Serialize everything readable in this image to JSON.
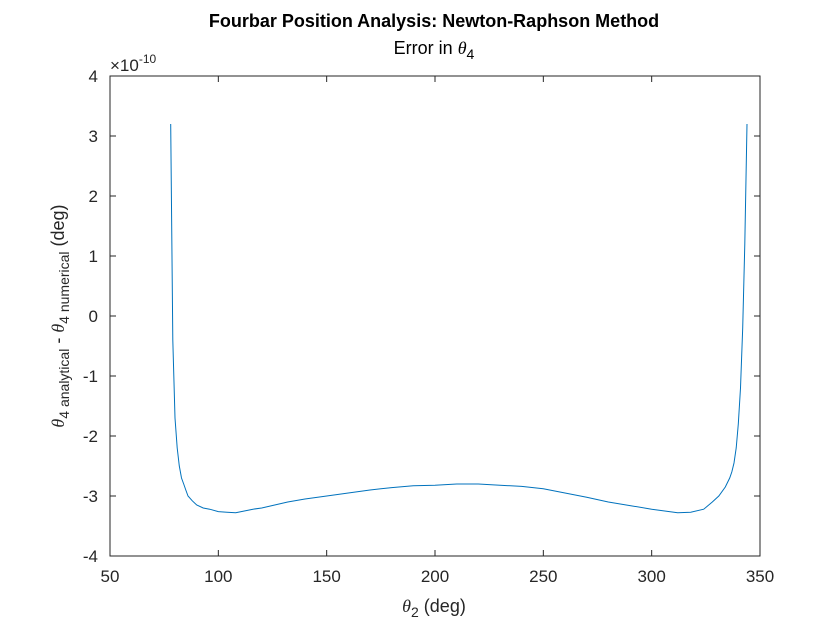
{
  "chart_data": {
    "type": "line",
    "title": "Fourbar Position Analysis: Newton-Raphson Method",
    "subtitle": {
      "prefix": "Error in ",
      "symbol": "θ",
      "sub": "4"
    },
    "xlabel": {
      "symbol": "θ",
      "sub": "2",
      "suffix": " (deg)"
    },
    "ylabel": {
      "symbol": "θ",
      "sub1": "4 analytical",
      "mid": " - ",
      "symbol2": "θ",
      "sub2": "4 numerical",
      "suffix": " (deg)"
    },
    "y_multiplier": {
      "base": "×10",
      "exp": "-10"
    },
    "xlim": [
      50,
      350
    ],
    "ylim": [
      -4,
      4
    ],
    "xticks": [
      50,
      100,
      150,
      200,
      250,
      300,
      350
    ],
    "yticks": [
      -4,
      -3,
      -2,
      -1,
      0,
      1,
      2,
      3,
      4
    ],
    "grid": false,
    "line_color": "#0072BD",
    "series": [
      {
        "x": [
          78,
          79,
          80,
          81,
          82,
          83,
          84,
          85,
          86,
          88,
          90,
          93,
          96,
          100,
          104,
          108,
          112,
          116,
          120,
          126,
          132,
          140,
          150,
          160,
          170,
          180,
          190,
          200,
          210,
          220,
          230,
          240,
          250,
          260,
          270,
          280,
          290,
          300,
          306,
          312,
          318,
          324,
          328,
          331,
          334,
          336,
          337,
          338,
          339,
          340,
          341,
          342,
          343,
          344
        ],
        "y": [
          3.2,
          -0.4,
          -1.7,
          -2.2,
          -2.5,
          -2.7,
          -2.8,
          -2.9,
          -3.0,
          -3.08,
          -3.15,
          -3.2,
          -3.22,
          -3.26,
          -3.27,
          -3.28,
          -3.25,
          -3.22,
          -3.2,
          -3.15,
          -3.1,
          -3.05,
          -3.0,
          -2.95,
          -2.9,
          -2.86,
          -2.83,
          -2.82,
          -2.8,
          -2.8,
          -2.82,
          -2.84,
          -2.88,
          -2.95,
          -3.02,
          -3.1,
          -3.16,
          -3.22,
          -3.25,
          -3.28,
          -3.27,
          -3.22,
          -3.1,
          -3.0,
          -2.85,
          -2.7,
          -2.6,
          -2.45,
          -2.2,
          -1.8,
          -1.2,
          -0.2,
          1.2,
          3.2
        ]
      }
    ]
  }
}
